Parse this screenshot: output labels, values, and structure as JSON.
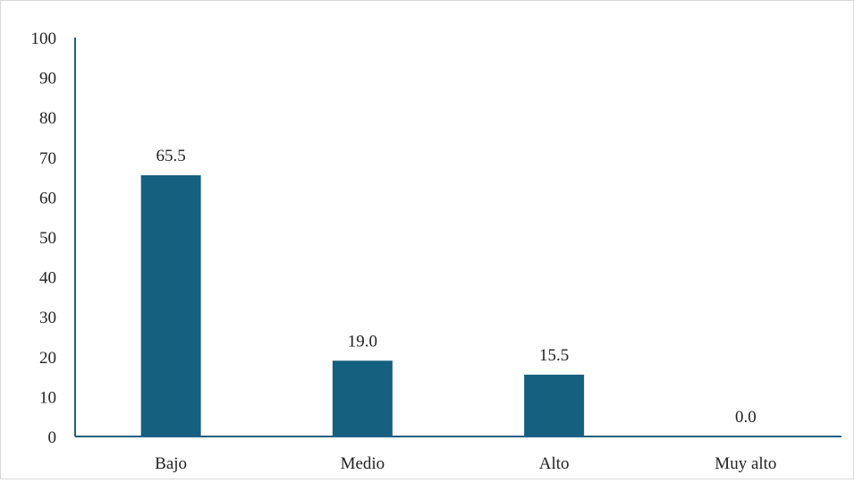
{
  "chart_data": {
    "type": "bar",
    "categories": [
      "Bajo",
      "Medio",
      "Alto",
      "Muy alto"
    ],
    "values": [
      65.5,
      19.0,
      15.5,
      0.0
    ],
    "data_labels": [
      "65.5",
      "19.0",
      "15.5",
      "0.0"
    ],
    "title": "",
    "xlabel": "",
    "ylabel": "",
    "ylim": [
      0,
      100
    ],
    "yticks": [
      0,
      10,
      20,
      30,
      40,
      50,
      60,
      70,
      80,
      90,
      100
    ],
    "grid": false,
    "legend": "none",
    "bar_color": "#15607f",
    "axis_color": "#1f5e85"
  }
}
